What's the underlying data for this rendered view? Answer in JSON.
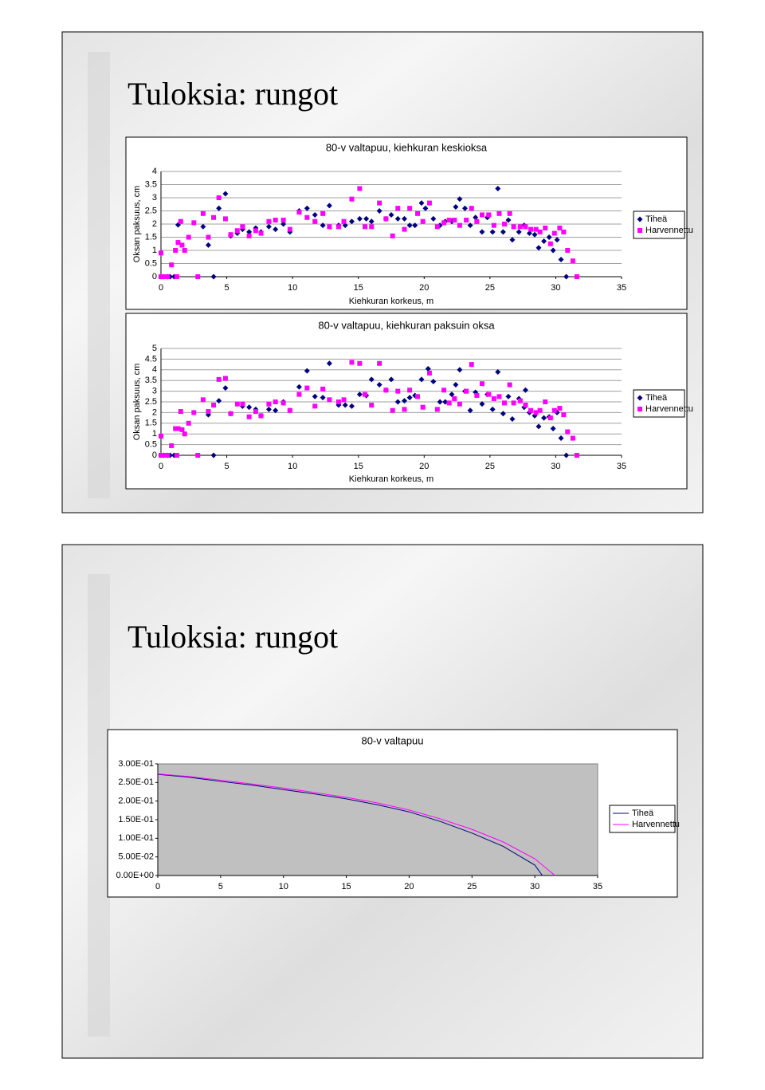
{
  "slides": [
    {
      "title": "Tuloksia: rungot"
    },
    {
      "title": "Tuloksia: rungot"
    }
  ],
  "chart_data": [
    {
      "type": "scatter",
      "title": "80-v valtapuu, kiehkuran keskioksa",
      "x_label": "Kiehkuran korkeus, m",
      "y_label": "Oksan paksuus, cm",
      "xlim": [
        0,
        35
      ],
      "xticks": [
        0,
        5,
        10,
        15,
        20,
        25,
        30,
        35
      ],
      "ylim": [
        0,
        4
      ],
      "yticks": [
        0,
        0.5,
        1,
        1.5,
        2,
        2.5,
        3,
        3.5,
        4
      ],
      "grid": true,
      "legend": "right",
      "series": [
        {
          "name": "Tiheä",
          "color": "#000080",
          "marker": "diamond",
          "x": [
            0,
            0.2,
            0.5,
            0.7,
            1,
            1.3,
            3.2,
            3.6,
            4,
            4.4,
            4.9,
            5.3,
            5.8,
            6.2,
            6.7,
            7.2,
            7.6,
            8.2,
            8.7,
            9.3,
            9.8,
            10.5,
            11.1,
            11.7,
            12.3,
            12.8,
            13.5,
            14,
            14.5,
            15.1,
            15.6,
            16,
            16.6,
            17.1,
            17.5,
            18,
            18.5,
            18.9,
            19.3,
            19.8,
            20.1,
            20.7,
            21.2,
            21.6,
            22.1,
            22.4,
            22.7,
            23.1,
            23.5,
            23.9,
            24.4,
            24.8,
            25.2,
            25.6,
            26,
            26.4,
            26.7,
            27.2,
            27.6,
            28,
            28.4,
            28.7,
            29.1,
            29.5,
            29.8,
            30.1,
            30.4,
            30.8
          ],
          "values": [
            0,
            0,
            0,
            0,
            0,
            1.97,
            1.9,
            1.2,
            0,
            2.6,
            3.15,
            1.55,
            1.65,
            1.8,
            1.7,
            1.85,
            1.7,
            1.9,
            1.8,
            2,
            1.7,
            2.5,
            2.6,
            2.35,
            1.95,
            2.7,
            1.95,
            1.95,
            2.1,
            2.2,
            2.2,
            2.1,
            2.5,
            2.2,
            2.35,
            2.2,
            2.2,
            1.95,
            1.95,
            2.8,
            2.6,
            2.2,
            1.95,
            2.1,
            2.1,
            2.65,
            2.95,
            2.6,
            1.95,
            2.25,
            1.7,
            2.25,
            1.7,
            3.35,
            1.7,
            2.15,
            1.4,
            1.7,
            1.95,
            1.65,
            1.6,
            1.1,
            1.35,
            1.5,
            1,
            1.4,
            0.65,
            0
          ]
        },
        {
          "name": "Harvennettu",
          "color": "#ff00ff",
          "marker": "square",
          "x": [
            0,
            0,
            0.25,
            0.5,
            0.8,
            1.1,
            1.2,
            1.3,
            1.6,
            1.5,
            1.8,
            2.1,
            2.5,
            2.8,
            3.2,
            3.6,
            4,
            4.4,
            4.9,
            5.3,
            5.8,
            6.2,
            6.7,
            7.2,
            7.6,
            8.2,
            8.7,
            9.3,
            9.8,
            10.5,
            11.1,
            11.7,
            12.3,
            12.8,
            13.5,
            13.9,
            14.5,
            15.1,
            15.5,
            16,
            16.6,
            17.1,
            17.6,
            18,
            18.5,
            18.9,
            19.5,
            19.9,
            20.4,
            21,
            21.5,
            21.9,
            22.3,
            22.7,
            23.2,
            23.6,
            24,
            24.4,
            24.9,
            25.3,
            25.7,
            26.1,
            26.5,
            26.8,
            27.3,
            27.7,
            28.1,
            28.5,
            28.8,
            29.2,
            29.6,
            29.9,
            30.3,
            30.6,
            30.9,
            31.3,
            31.6
          ],
          "values": [
            0.9,
            0,
            0,
            0,
            0.45,
            1,
            0,
            1.3,
            1.2,
            2.1,
            1,
            1.5,
            2.05,
            0,
            2.4,
            1.5,
            2.25,
            3,
            2.2,
            1.6,
            1.75,
            1.9,
            1.55,
            1.75,
            1.65,
            2.1,
            2.15,
            2.15,
            1.8,
            2.45,
            2.25,
            2.1,
            2.4,
            1.9,
            1.9,
            2.1,
            2.95,
            3.35,
            1.9,
            1.9,
            2.8,
            2.2,
            1.55,
            2.6,
            1.8,
            2.6,
            2.4,
            2.1,
            2.8,
            1.9,
            2.05,
            2.15,
            2.15,
            1.95,
            2.15,
            2.6,
            2.1,
            2.35,
            2.35,
            1.95,
            2.4,
            2,
            2.4,
            1.9,
            1.9,
            1.9,
            1.8,
            1.8,
            1.7,
            1.85,
            1.25,
            1.65,
            1.85,
            1.7,
            1,
            0.6,
            0
          ]
        }
      ]
    },
    {
      "type": "scatter",
      "title": "80-v valtapuu, kiehkuran paksuin oksa",
      "x_label": "Kiehkuran korkeus, m",
      "y_label": "Oksan paksuus, cm",
      "xlim": [
        0,
        35
      ],
      "xticks": [
        0,
        5,
        10,
        15,
        20,
        25,
        30,
        35
      ],
      "ylim": [
        0,
        5
      ],
      "yticks": [
        0,
        0.5,
        1,
        1.5,
        2,
        2.5,
        3,
        3.5,
        4,
        4.5,
        5
      ],
      "grid": true,
      "legend": "right",
      "series": [
        {
          "name": "Tiheä",
          "color": "#000080",
          "marker": "diamond",
          "x": [
            0,
            0.2,
            0.5,
            0.7,
            1,
            3.6,
            4,
            4.4,
            4.9,
            5.3,
            6.2,
            6.7,
            7.2,
            7.6,
            8.2,
            8.7,
            9.3,
            9.8,
            10.5,
            11.1,
            11.7,
            12.3,
            12.8,
            13.5,
            14,
            14.5,
            15.1,
            15.6,
            16,
            16.6,
            17.1,
            17.5,
            18,
            18.5,
            18.9,
            19.3,
            19.8,
            20.3,
            20.7,
            21.2,
            21.6,
            22.1,
            22.4,
            22.7,
            23.1,
            23.5,
            23.9,
            24.4,
            24.8,
            25.2,
            25.6,
            26,
            26.4,
            26.7,
            27.2,
            27.6,
            27.7,
            28,
            28.4,
            28.7,
            29.1,
            29.5,
            29.8,
            30.1,
            30.4,
            30.8
          ],
          "values": [
            0,
            0,
            0,
            0,
            0,
            1.9,
            0,
            2.55,
            3.15,
            1.95,
            2.3,
            2.25,
            2.15,
            1.85,
            2.15,
            2.1,
            2.5,
            2.1,
            3.2,
            3.95,
            2.75,
            2.7,
            4.3,
            2.35,
            2.35,
            2.3,
            2.85,
            2.8,
            3.55,
            3.3,
            3.05,
            3.55,
            2.5,
            2.55,
            2.7,
            2.8,
            3.55,
            4.05,
            3.45,
            2.5,
            2.5,
            2.85,
            3.3,
            4,
            3,
            2.1,
            2.95,
            2.4,
            2.85,
            2.15,
            3.9,
            1.95,
            2.75,
            1.7,
            2.65,
            2.25,
            3.05,
            2,
            1.85,
            1.35,
            1.75,
            1.8,
            1.25,
            2,
            0.8,
            0
          ]
        },
        {
          "name": "Harvennettu",
          "color": "#ff00ff",
          "marker": "square",
          "x": [
            0,
            0,
            0.25,
            0.5,
            0.8,
            1.1,
            1.2,
            1.3,
            1.5,
            1.6,
            1.8,
            2.1,
            2.5,
            2.8,
            3.2,
            3.6,
            4,
            4.4,
            4.9,
            5.3,
            5.8,
            6.2,
            6.7,
            7.2,
            7.6,
            8.2,
            8.7,
            9.3,
            9.8,
            10.5,
            11.1,
            11.7,
            12.3,
            12.8,
            13.5,
            13.9,
            14.5,
            15.1,
            15.5,
            16,
            16.6,
            17.1,
            17.6,
            18,
            18.5,
            18.9,
            19.5,
            19.9,
            20.4,
            21,
            21.5,
            21.9,
            22.3,
            22.7,
            23.2,
            23.6,
            24,
            24.4,
            24.9,
            25.3,
            25.7,
            26.1,
            26.5,
            26.8,
            27.3,
            27.7,
            28.1,
            28.5,
            28.8,
            29.2,
            29.6,
            29.9,
            30.3,
            30.6,
            30.9,
            31.3,
            31.6
          ],
          "values": [
            0.9,
            0,
            0,
            0,
            0.45,
            1.25,
            0,
            1.25,
            2.05,
            1.2,
            1,
            1.5,
            2,
            0,
            2.6,
            2.05,
            2.35,
            3.55,
            3.6,
            1.95,
            2.4,
            2.4,
            1.8,
            2.05,
            1.85,
            2.4,
            2.5,
            2.45,
            2.1,
            2.85,
            3.15,
            2.3,
            3.1,
            2.6,
            2.5,
            2.6,
            4.35,
            4.3,
            2.85,
            2.35,
            4.3,
            3.05,
            2.1,
            3,
            2.15,
            3.05,
            2.75,
            2.25,
            3.85,
            2.15,
            3.05,
            2.45,
            2.65,
            2.4,
            3,
            4.25,
            2.8,
            3.35,
            2.85,
            2.65,
            2.75,
            2.45,
            3.3,
            2.45,
            2.55,
            2.35,
            2.1,
            2,
            2.1,
            2.5,
            1.75,
            2.1,
            2.2,
            1.9,
            1.1,
            0.8,
            0
          ]
        }
      ]
    },
    {
      "type": "line",
      "title": "80-v valtapuu",
      "xlim": [
        0,
        35
      ],
      "xticks": [
        0,
        5,
        10,
        15,
        20,
        25,
        30,
        35
      ],
      "ylim": [
        0,
        0.3
      ],
      "yticks": [
        {
          "value": 0,
          "label": "0.00E+00"
        },
        {
          "value": 0.05,
          "label": "5.00E-02"
        },
        {
          "value": 0.1,
          "label": "1.00E-01"
        },
        {
          "value": 0.15,
          "label": "1.50E-01"
        },
        {
          "value": 0.2,
          "label": "2.00E-01"
        },
        {
          "value": 0.25,
          "label": "2.50E-01"
        },
        {
          "value": 0.3,
          "label": "3.00E-01"
        }
      ],
      "grid": false,
      "legend": "right",
      "plot_background": "#c0c0c0",
      "series": [
        {
          "name": "Tiheä",
          "color": "#000080",
          "x": [
            0,
            2.5,
            5,
            7.5,
            10,
            12.5,
            15,
            17.5,
            20,
            22.5,
            25,
            27.5,
            30,
            30.6
          ],
          "values": [
            0.272,
            0.264,
            0.253,
            0.243,
            0.231,
            0.219,
            0.206,
            0.19,
            0.171,
            0.145,
            0.114,
            0.078,
            0.028,
            0
          ]
        },
        {
          "name": "Harvennettu",
          "color": "#ff00ff",
          "x": [
            0,
            2.5,
            5,
            7.5,
            10,
            12.5,
            15,
            17.5,
            20,
            22.5,
            25,
            27.5,
            30,
            31.6
          ],
          "values": [
            0.273,
            0.266,
            0.256,
            0.246,
            0.235,
            0.223,
            0.21,
            0.195,
            0.176,
            0.152,
            0.124,
            0.09,
            0.045,
            0
          ]
        }
      ]
    }
  ]
}
